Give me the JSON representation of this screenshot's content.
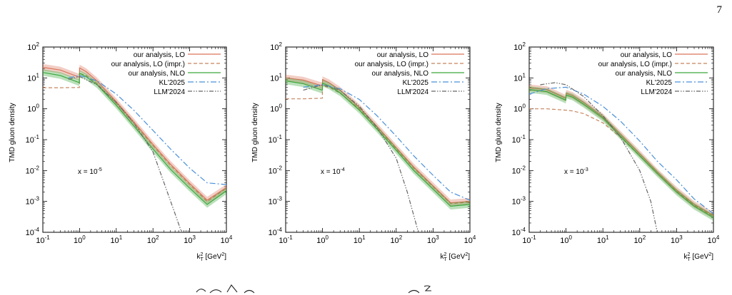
{
  "page_number": "7",
  "chart_data": [
    {
      "type": "line",
      "ylabel": "TMD gluon density",
      "xlabel_main": "k",
      "xlabel_sub": "T",
      "xlabel_sup": "2",
      "xlabel_unit": " [GeV",
      "xlabel_unit_sup": "2",
      "xlabel_close": "]",
      "xscale": "log",
      "yscale": "log",
      "xlim": [
        0.1,
        10000
      ],
      "ylim": [
        0.0001,
        100
      ],
      "x_ticks": [
        {
          "base": "10",
          "exp": "-1"
        },
        {
          "base": "10",
          "exp": "0"
        },
        {
          "base": "10",
          "exp": "1"
        },
        {
          "base": "10",
          "exp": "2"
        },
        {
          "base": "10",
          "exp": "3"
        },
        {
          "base": "10",
          "exp": "4"
        }
      ],
      "y_ticks": [
        {
          "base": "10",
          "exp": "-4"
        },
        {
          "base": "10",
          "exp": "-3"
        },
        {
          "base": "10",
          "exp": "-2"
        },
        {
          "base": "10",
          "exp": "-1"
        },
        {
          "base": "10",
          "exp": "0"
        },
        {
          "base": "10",
          "exp": "1"
        },
        {
          "base": "10",
          "exp": "2"
        }
      ],
      "annotation": {
        "text": "x = 10",
        "exp": "-5"
      },
      "legend_position": "top-right",
      "series": [
        {
          "name": "our analysis, LO",
          "color": "#d9735a",
          "dash": "solid",
          "band": true,
          "x": [
            0.1,
            0.3,
            0.99,
            1.0,
            1.5,
            3,
            10,
            30,
            100,
            300,
            1000,
            3000,
            10000
          ],
          "y": [
            22,
            18,
            10.5,
            21,
            16,
            8,
            1.7,
            0.38,
            0.07,
            0.016,
            0.0038,
            0.0011,
            0.0028
          ]
        },
        {
          "name": "our analysis, LO (impr.)",
          "color": "#c8855e",
          "dash": "5,3",
          "band": false,
          "x": [
            0.1,
            0.3,
            0.99,
            1.0,
            1.5,
            3,
            10,
            30,
            100,
            300,
            1000,
            3000,
            10000
          ],
          "y": [
            4.8,
            4.8,
            4.9,
            14,
            12,
            6.5,
            1.5,
            0.34,
            0.065,
            0.015,
            0.0036,
            0.001,
            0.0027
          ]
        },
        {
          "name": "our analysis, NLO",
          "color": "#3aa63a",
          "dash": "solid",
          "band": true,
          "x": [
            0.1,
            0.3,
            0.99,
            1.0,
            1.5,
            3,
            10,
            30,
            100,
            300,
            1000,
            3000,
            10000
          ],
          "y": [
            15,
            12,
            7,
            14,
            11,
            6,
            1.3,
            0.28,
            0.05,
            0.011,
            0.0027,
            0.0008,
            0.0022
          ]
        },
        {
          "name": "KL'2025",
          "color": "#4a90d9",
          "dash": "8,3,2,3",
          "band": false,
          "x": [
            0.5,
            1,
            3,
            10,
            30,
            100,
            300,
            1000,
            3000,
            10000
          ],
          "y": [
            10,
            12,
            8,
            3,
            0.9,
            0.2,
            0.05,
            0.012,
            0.004,
            0.0035
          ]
        },
        {
          "name": "LLM'2024",
          "color": "#666666",
          "dash": "6,2,1.5,2,1.5,2",
          "band": false,
          "x": [
            0.5,
            1,
            3,
            10,
            30,
            100,
            200,
            400,
            600
          ],
          "y": [
            9,
            11,
            6,
            1.6,
            0.35,
            0.04,
            0.004,
            0.0004,
            0.0001
          ]
        }
      ]
    },
    {
      "type": "line",
      "ylabel": "TMD gluon density",
      "xlabel_main": "k",
      "xlabel_sub": "T",
      "xlabel_sup": "2",
      "xlabel_unit": " [GeV",
      "xlabel_unit_sup": "2",
      "xlabel_close": "]",
      "xscale": "log",
      "yscale": "log",
      "xlim": [
        0.1,
        10000
      ],
      "ylim": [
        0.0001,
        100
      ],
      "x_ticks": [
        {
          "base": "10",
          "exp": "-1"
        },
        {
          "base": "10",
          "exp": "0"
        },
        {
          "base": "10",
          "exp": "1"
        },
        {
          "base": "10",
          "exp": "2"
        },
        {
          "base": "10",
          "exp": "3"
        },
        {
          "base": "10",
          "exp": "4"
        }
      ],
      "y_ticks": [
        {
          "base": "10",
          "exp": "-4"
        },
        {
          "base": "10",
          "exp": "-3"
        },
        {
          "base": "10",
          "exp": "-2"
        },
        {
          "base": "10",
          "exp": "-1"
        },
        {
          "base": "10",
          "exp": "0"
        },
        {
          "base": "10",
          "exp": "1"
        },
        {
          "base": "10",
          "exp": "2"
        }
      ],
      "annotation": {
        "text": "x = 10",
        "exp": "-4"
      },
      "legend_position": "top-right",
      "series": [
        {
          "name": "our analysis, LO",
          "color": "#d9735a",
          "dash": "solid",
          "band": true,
          "x": [
            0.1,
            0.3,
            0.99,
            1.0,
            1.5,
            3,
            10,
            30,
            100,
            300,
            1000,
            3000,
            10000
          ],
          "y": [
            10,
            8.5,
            5.5,
            8.8,
            7,
            4,
            1.1,
            0.27,
            0.055,
            0.013,
            0.0032,
            0.0009,
            0.001
          ]
        },
        {
          "name": "our analysis, LO (impr.)",
          "color": "#c8855e",
          "dash": "5,3",
          "band": false,
          "x": [
            0.1,
            0.3,
            0.99,
            1.0,
            1.5,
            3,
            10,
            30,
            100,
            300,
            1000,
            3000,
            10000
          ],
          "y": [
            2.1,
            2.1,
            2.2,
            5.5,
            5,
            3.2,
            1,
            0.25,
            0.05,
            0.012,
            0.003,
            0.00085,
            0.00095
          ]
        },
        {
          "name": "our analysis, NLO",
          "color": "#3aa63a",
          "dash": "solid",
          "band": true,
          "x": [
            0.1,
            0.3,
            0.99,
            1.0,
            1.5,
            3,
            10,
            30,
            100,
            300,
            1000,
            3000,
            10000
          ],
          "y": [
            8,
            6.5,
            4,
            6.8,
            5.5,
            3.3,
            0.9,
            0.22,
            0.045,
            0.01,
            0.0025,
            0.0007,
            0.0008
          ]
        },
        {
          "name": "KL'2025",
          "color": "#4a90d9",
          "dash": "8,3,2,3",
          "band": false,
          "x": [
            0.3,
            1,
            3,
            10,
            30,
            100,
            300,
            1000,
            3000,
            10000
          ],
          "y": [
            5,
            6,
            4.5,
            2,
            0.6,
            0.13,
            0.03,
            0.007,
            0.002,
            0.0011
          ]
        },
        {
          "name": "LLM'2024",
          "color": "#666666",
          "dash": "6,2,1.5,2,1.5,2",
          "band": false,
          "x": [
            0.3,
            1,
            3,
            10,
            30,
            100,
            200,
            400
          ],
          "y": [
            4,
            6,
            4,
            1.2,
            0.25,
            0.025,
            0.002,
            0.0001
          ]
        }
      ]
    },
    {
      "type": "line",
      "ylabel": "TMD gluon density",
      "xlabel_main": "k",
      "xlabel_sub": "T",
      "xlabel_sup": "2",
      "xlabel_unit": " [GeV",
      "xlabel_unit_sup": "2",
      "xlabel_close": "]",
      "xscale": "log",
      "yscale": "log",
      "xlim": [
        0.1,
        10000
      ],
      "ylim": [
        0.0001,
        100
      ],
      "x_ticks": [
        {
          "base": "10",
          "exp": "-1"
        },
        {
          "base": "10",
          "exp": "0"
        },
        {
          "base": "10",
          "exp": "1"
        },
        {
          "base": "10",
          "exp": "2"
        },
        {
          "base": "10",
          "exp": "3"
        },
        {
          "base": "10",
          "exp": "4"
        }
      ],
      "y_ticks": [
        {
          "base": "10",
          "exp": "-4"
        },
        {
          "base": "10",
          "exp": "-3"
        },
        {
          "base": "10",
          "exp": "-2"
        },
        {
          "base": "10",
          "exp": "-1"
        },
        {
          "base": "10",
          "exp": "0"
        },
        {
          "base": "10",
          "exp": "1"
        },
        {
          "base": "10",
          "exp": "2"
        }
      ],
      "annotation": {
        "text": "x = 10",
        "exp": "-3"
      },
      "legend_position": "top-right",
      "series": [
        {
          "name": "our analysis, LO",
          "color": "#d9735a",
          "dash": "solid",
          "band": true,
          "x": [
            0.1,
            0.3,
            0.99,
            1.0,
            1.5,
            3,
            10,
            30,
            100,
            300,
            1000,
            3000,
            10000
          ],
          "y": [
            4.8,
            4.2,
            2.2,
            3.2,
            2.7,
            1.6,
            0.55,
            0.15,
            0.035,
            0.009,
            0.0023,
            0.0008,
            0.00035
          ]
        },
        {
          "name": "our analysis, LO (impr.)",
          "color": "#c8855e",
          "dash": "5,3",
          "band": false,
          "x": [
            0.1,
            0.3,
            0.99,
            1.0,
            1.5,
            3,
            10,
            30,
            100,
            300,
            1000,
            3000,
            10000
          ],
          "y": [
            1,
            1,
            0.9,
            0.9,
            0.85,
            0.7,
            0.35,
            0.12,
            0.03,
            0.008,
            0.0021,
            0.00075,
            0.00033
          ]
        },
        {
          "name": "our analysis, NLO",
          "color": "#3aa63a",
          "dash": "solid",
          "band": true,
          "x": [
            0.1,
            0.3,
            0.99,
            1.0,
            1.5,
            3,
            10,
            30,
            100,
            300,
            1000,
            3000,
            10000
          ],
          "y": [
            4.2,
            3.6,
            1.9,
            2.8,
            2.4,
            1.4,
            0.5,
            0.13,
            0.03,
            0.008,
            0.002,
            0.0007,
            0.0003
          ]
        },
        {
          "name": "KL'2025",
          "color": "#4a90d9",
          "dash": "8,3,2,3",
          "band": false,
          "x": [
            0.1,
            0.3,
            1,
            3,
            10,
            30,
            100,
            300,
            1000,
            3000,
            10000
          ],
          "y": [
            3,
            4.5,
            5,
            3,
            1.2,
            0.4,
            0.09,
            0.02,
            0.005,
            0.0012,
            0.0004
          ]
        },
        {
          "name": "LLM'2024",
          "color": "#666666",
          "dash": "6,2,1.5,2,1.5,2",
          "band": false,
          "x": [
            0.2,
            0.5,
            1,
            3,
            10,
            30,
            100,
            200,
            300
          ],
          "y": [
            6,
            7,
            6,
            2.5,
            0.6,
            0.12,
            0.01,
            0.001,
            0.0001
          ]
        }
      ]
    }
  ]
}
